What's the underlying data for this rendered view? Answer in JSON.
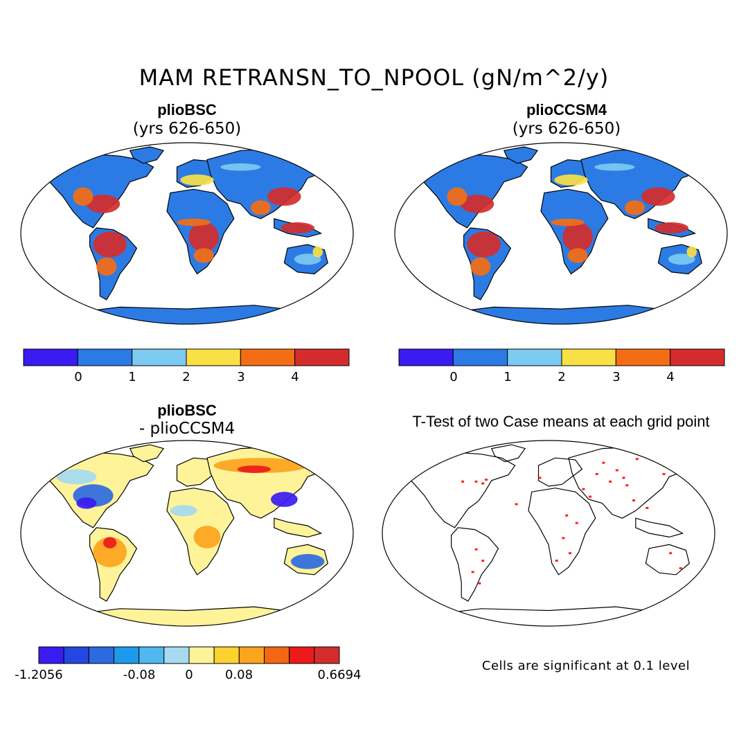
{
  "main_title": "MAM RETRANSN_TO_NPOOL (gN/m^2/y)",
  "panels": {
    "top_left": {
      "title": "plioBSC",
      "subtitle": "(yrs 626-650)"
    },
    "top_right": {
      "title": "plioCCSM4",
      "subtitle": "(yrs 626-650)"
    },
    "bottom_left": {
      "title": "plioBSC",
      "subtitle": "- plioCCSM4"
    },
    "bottom_right": {
      "title": "T-Test of two Case means at each grid point"
    }
  },
  "colorbar_top": {
    "colors": [
      "#3a1cf2",
      "#2c7be4",
      "#7cc9f2",
      "#f9e046",
      "#f46d14",
      "#d42c2c"
    ],
    "labels": [
      "0",
      "1",
      "2",
      "3",
      "4"
    ]
  },
  "colorbar_diff": {
    "colors": [
      "#3a1cf2",
      "#2446e2",
      "#2c6ae0",
      "#1d9bea",
      "#4fb8f0",
      "#a6daf0",
      "#fff39a",
      "#fcd22e",
      "#fca41e",
      "#f46612",
      "#ec1a1a",
      "#d42c2c"
    ],
    "labels": [
      "-1.2056",
      "-0.08",
      "0",
      "0.08",
      "0.6694"
    ]
  },
  "footnote": "Cells are significant at 0.1 level",
  "map_colors": {
    "ocean": "#ffffff",
    "land_low": "#2c7be4",
    "land_mid": "#7cc9f2",
    "land_yellow": "#f9e046",
    "land_orange": "#f46d14",
    "land_red": "#d42c2c",
    "diff_neutral": "#fff39a",
    "diff_light_blue": "#a6daf0",
    "diff_blue": "#2c6ae0",
    "diff_dark": "#3a1cf2",
    "diff_orange": "#fca41e",
    "diff_red": "#ec1a1a",
    "sig_dot": "#ff2020",
    "coast": "#000000"
  }
}
